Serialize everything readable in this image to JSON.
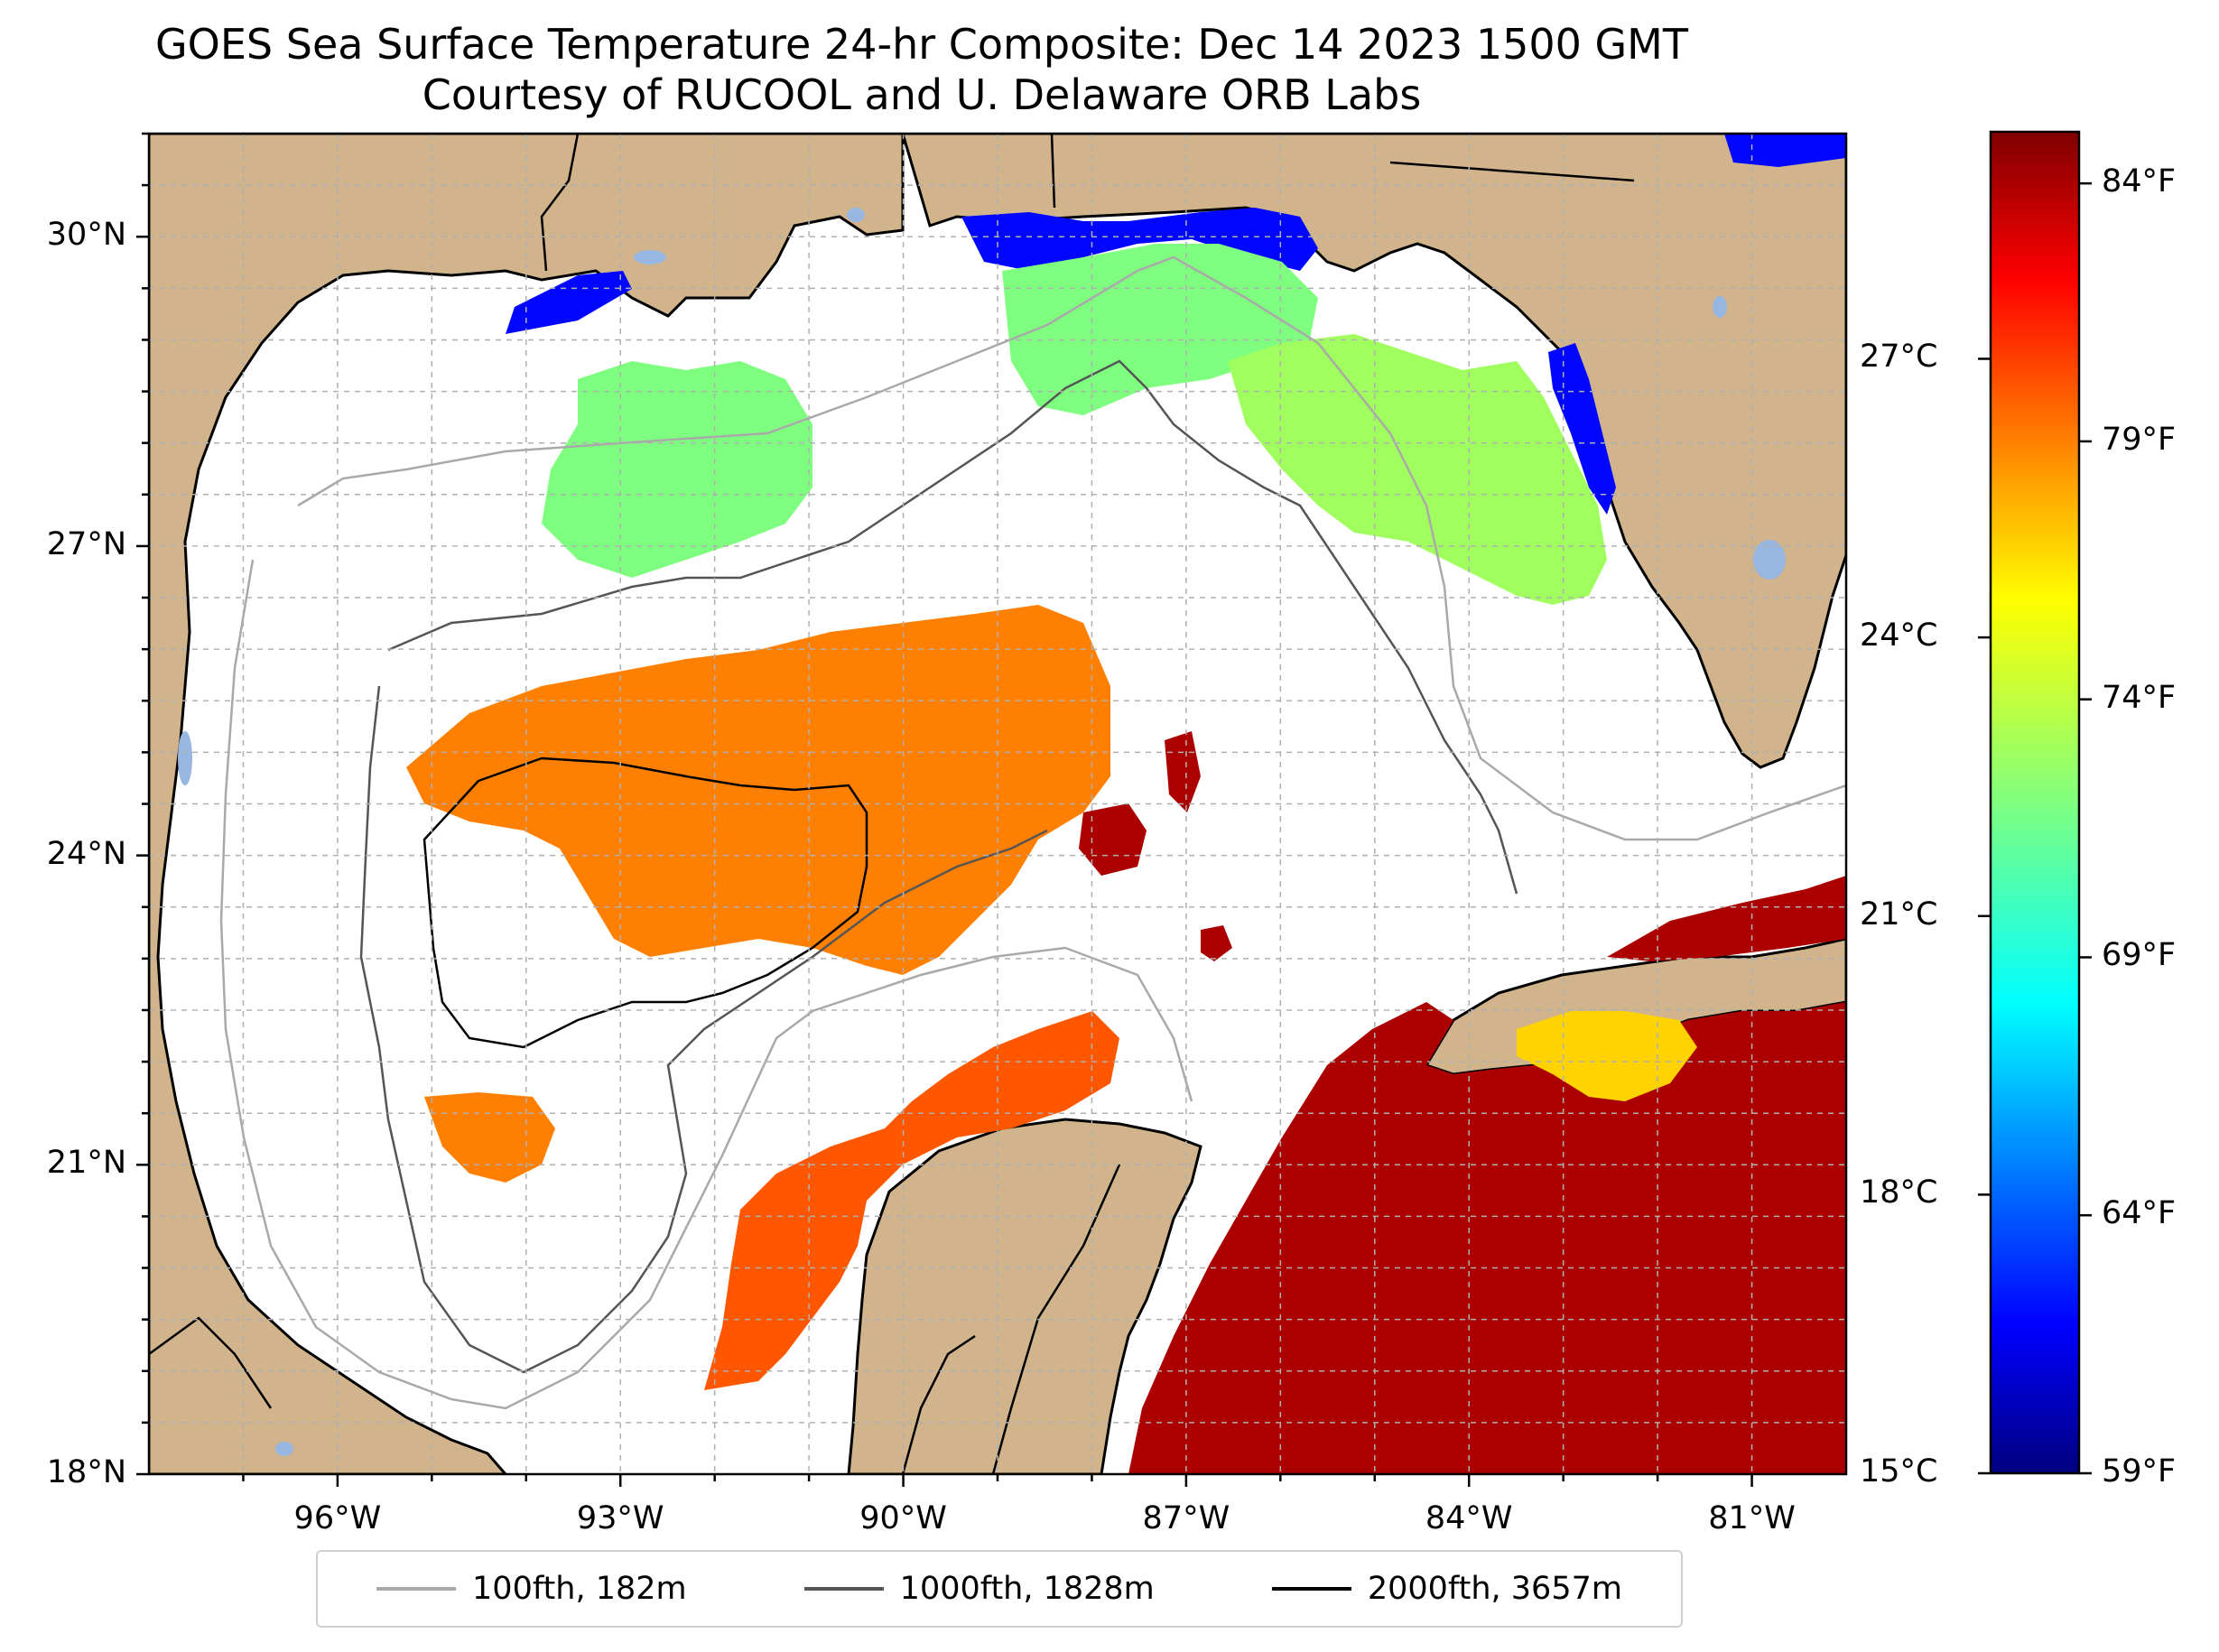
{
  "title": {
    "line1": "GOES Sea Surface Temperature 24-hr Composite: Dec 14 2023 1500 GMT",
    "line2": "Courtesy of RUCOOL and U. Delaware ORB Labs"
  },
  "map": {
    "extent": {
      "lon_min": -98,
      "lon_max": -80,
      "lat_min": 18,
      "lat_max": 31
    },
    "land_color": "#d2b48c",
    "lake_color": "#97b6e1",
    "ocean_color": "#ffffff",
    "lat_ticks": [
      {
        "value": 30,
        "label": "30°N"
      },
      {
        "value": 27,
        "label": "27°N"
      },
      {
        "value": 24,
        "label": "24°N"
      },
      {
        "value": 21,
        "label": "21°N"
      },
      {
        "value": 18,
        "label": "18°N"
      }
    ],
    "lon_ticks": [
      {
        "value": -96,
        "label": "96°W"
      },
      {
        "value": -93,
        "label": "93°W"
      },
      {
        "value": -90,
        "label": "90°W"
      },
      {
        "value": -87,
        "label": "87°W"
      },
      {
        "value": -84,
        "label": "84°W"
      },
      {
        "value": -81,
        "label": "81°W"
      }
    ],
    "gridlines": "dashed"
  },
  "colorbar": {
    "colormap": "jet",
    "celsius_labels": [
      {
        "value": 27,
        "label": "27°C"
      },
      {
        "value": 24,
        "label": "24°C"
      },
      {
        "value": 21,
        "label": "21°C"
      },
      {
        "value": 18,
        "label": "18°C"
      },
      {
        "value": 15,
        "label": "15°C"
      }
    ],
    "fahrenheit_labels": [
      {
        "value": 84,
        "label": "84°F"
      },
      {
        "value": 79,
        "label": "79°F"
      },
      {
        "value": 74,
        "label": "74°F"
      },
      {
        "value": 69,
        "label": "69°F"
      },
      {
        "value": 64,
        "label": "64°F"
      },
      {
        "value": 59,
        "label": "59°F"
      }
    ],
    "range_f": [
      59,
      85
    ]
  },
  "legend": {
    "placement": "bottom",
    "items": [
      {
        "label": "100fth, 182m",
        "color": "#a9a9a9"
      },
      {
        "label": "1000fth, 1828m",
        "color": "#555555"
      },
      {
        "label": "2000fth, 3657m",
        "color": "#000000"
      }
    ]
  },
  "sst_patches": [
    {
      "name": "north-gulf-cool",
      "temp_f": 72
    },
    {
      "name": "mississippi-sound-cold",
      "temp_f": 62
    },
    {
      "name": "central-gulf-warm",
      "temp_f": 79
    },
    {
      "name": "yucatan-shelf-warm",
      "temp_f": 80
    },
    {
      "name": "caribbean-hot",
      "temp_f": 84
    },
    {
      "name": "cuba-shelf",
      "temp_f": 77
    },
    {
      "name": "florida-west-coast",
      "temp_f": 73
    }
  ]
}
